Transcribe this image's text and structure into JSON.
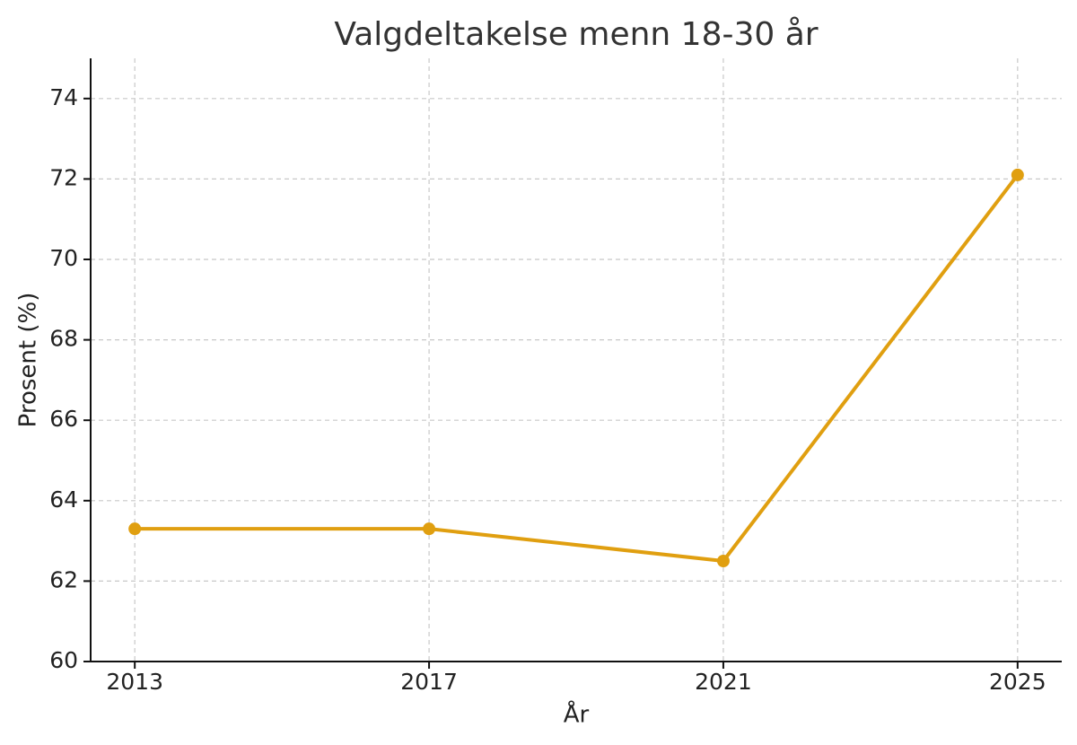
{
  "chart_data": {
    "type": "line",
    "title": "Valgdeltakelse menn 18-30 år",
    "x_label": "År",
    "y_label": "Prosent (%)",
    "x": [
      2013,
      2017,
      2021,
      2025
    ],
    "series": [
      {
        "name": "Valgdeltakelse",
        "color": "#e09f10",
        "values": [
          63.3,
          63.3,
          62.5,
          72.1
        ]
      }
    ],
    "xlim": [
      2012.4,
      2025.6
    ],
    "xticks": [
      2013,
      2017,
      2021,
      2025
    ],
    "ylim": [
      60,
      75
    ],
    "yticks": [
      60,
      62,
      64,
      66,
      68,
      70,
      72,
      74
    ],
    "grid": true
  }
}
